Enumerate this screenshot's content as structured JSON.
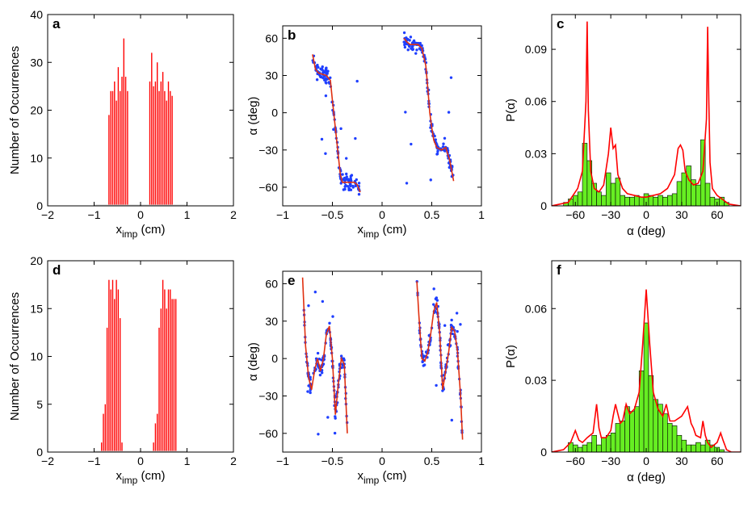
{
  "figure": {
    "x_imp_label": "x",
    "x_imp_sub": "imp",
    "x_imp_unit": " (cm)",
    "occ_label": "Number of Occurrences",
    "alpha_label": "α (deg)",
    "p_alpha_label": "P(α)"
  },
  "colors": {
    "bar_red": "#ff0000",
    "dot_blue": "#1f3fff",
    "fit_line": "#e03010",
    "hist_green": "#66ee22",
    "axis": "#000000"
  },
  "chart_data": [
    {
      "panel": "a",
      "type": "bar",
      "xlabel": "x_imp (cm)",
      "ylabel": "Number of Occurrences",
      "xlim": [
        -2,
        2
      ],
      "ylim": [
        0,
        40
      ],
      "xticks": [
        "−2",
        "−1",
        "0",
        "1",
        "2"
      ],
      "yticks": [
        "0",
        "10",
        "20",
        "30",
        "40"
      ],
      "x": [
        -0.68,
        -0.64,
        -0.6,
        -0.56,
        -0.52,
        -0.48,
        -0.44,
        -0.4,
        -0.36,
        -0.32,
        -0.28,
        -0.24,
        0.2,
        0.24,
        0.28,
        0.32,
        0.36,
        0.4,
        0.44,
        0.48,
        0.52,
        0.56,
        0.6,
        0.64,
        0.68
      ],
      "values": [
        19,
        24,
        24,
        26,
        22,
        29,
        24,
        27,
        35,
        27,
        24,
        0,
        26,
        32,
        25,
        26,
        30,
        24,
        26,
        28,
        24,
        22,
        26,
        24,
        23
      ]
    },
    {
      "panel": "b",
      "type": "scatter",
      "xlabel": "x_imp (cm)",
      "ylabel": "α (deg)",
      "xlim": [
        -1,
        1
      ],
      "ylim": [
        -75,
        70
      ],
      "xticks": [
        "−1",
        "−0.5",
        "0",
        "0.5",
        "1"
      ],
      "yticks": [
        "−60",
        "−30",
        "0",
        "30",
        "60"
      ],
      "fit_segments": [
        {
          "x": [
            -0.7,
            -0.67,
            -0.64,
            -0.6,
            -0.56,
            -0.52,
            -0.5,
            -0.48,
            -0.46,
            -0.44,
            -0.42,
            -0.4,
            -0.36,
            -0.32,
            -0.28,
            -0.25,
            -0.22
          ],
          "y": [
            47,
            35,
            32,
            31,
            30,
            26,
            10,
            -5,
            -20,
            -35,
            -50,
            -56,
            -56,
            -56,
            -56,
            -58,
            -64
          ]
        },
        {
          "x": [
            0.22,
            0.25,
            0.28,
            0.32,
            0.36,
            0.4,
            0.44,
            0.46,
            0.48,
            0.5,
            0.52,
            0.55,
            0.6,
            0.64,
            0.68,
            0.72
          ],
          "y": [
            60,
            57,
            55,
            55,
            55,
            52,
            38,
            20,
            0,
            -12,
            -22,
            -28,
            -30,
            -28,
            -38,
            -55
          ]
        }
      ]
    },
    {
      "panel": "c",
      "type": "bar",
      "xlabel": "α (deg)",
      "ylabel": "P(α)",
      "xlim": [
        -80,
        80
      ],
      "ylim": [
        0,
        0.11
      ],
      "xticks": [
        "−60",
        "−30",
        "0",
        "30",
        "60"
      ],
      "yticks": [
        "0",
        "0.03",
        "0.06",
        "0.09"
      ],
      "bin_edges_start": -70,
      "bin_width": 4,
      "values": [
        0.002,
        0.004,
        0.006,
        0.008,
        0.036,
        0.026,
        0.013,
        0.008,
        0.006,
        0.019,
        0.013,
        0.016,
        0.006,
        0.005,
        0.005,
        0.006,
        0.005,
        0.007,
        0.006,
        0.005,
        0.006,
        0.005,
        0.006,
        0.007,
        0.014,
        0.019,
        0.023,
        0.015,
        0.012,
        0.038,
        0.013,
        0.005,
        0.004,
        0.005,
        0.002
      ],
      "curve": {
        "x": [
          -80,
          -66,
          -62,
          -58,
          -54,
          -51,
          -50,
          -49,
          -47,
          -44,
          -40,
          -36,
          -32,
          -30,
          -28,
          -26,
          -24,
          -20,
          -16,
          -10,
          -4,
          0,
          6,
          12,
          18,
          24,
          27,
          29,
          31,
          33,
          36,
          40,
          44,
          48,
          51,
          52,
          53,
          54,
          56,
          60,
          66,
          70,
          80
        ],
        "y": [
          0,
          0.002,
          0.006,
          0.01,
          0.02,
          0.06,
          0.106,
          0.055,
          0.02,
          0.01,
          0.008,
          0.012,
          0.03,
          0.045,
          0.033,
          0.035,
          0.018,
          0.01,
          0.007,
          0.006,
          0.005,
          0.005,
          0.006,
          0.007,
          0.01,
          0.018,
          0.033,
          0.035,
          0.032,
          0.02,
          0.015,
          0.012,
          0.013,
          0.02,
          0.05,
          0.103,
          0.06,
          0.025,
          0.01,
          0.006,
          0.003,
          0.001,
          0
        ]
      }
    },
    {
      "panel": "d",
      "type": "bar",
      "xlabel": "x_imp (cm)",
      "ylabel": "Number of Occurrences",
      "xlim": [
        -2,
        2
      ],
      "ylim": [
        0,
        20
      ],
      "xticks": [
        "−2",
        "−1",
        "0",
        "1",
        "2"
      ],
      "yticks": [
        "0",
        "5",
        "10",
        "15",
        "20"
      ],
      "x": [
        -0.84,
        -0.8,
        -0.76,
        -0.72,
        -0.68,
        -0.64,
        -0.6,
        -0.56,
        -0.52,
        -0.48,
        -0.44,
        -0.4,
        0.28,
        0.32,
        0.36,
        0.4,
        0.44,
        0.48,
        0.52,
        0.56,
        0.6,
        0.64,
        0.68,
        0.72,
        0.76
      ],
      "values": [
        1,
        4,
        5,
        13,
        18,
        17,
        18,
        16,
        18,
        17,
        14,
        1,
        1,
        3,
        4,
        13,
        15,
        18,
        17,
        15,
        17,
        17,
        16,
        16,
        16
      ]
    },
    {
      "panel": "e",
      "type": "scatter",
      "xlabel": "x_imp (cm)",
      "ylabel": "α (deg)",
      "xlim": [
        -1,
        1
      ],
      "ylim": [
        -75,
        70
      ],
      "xticks": [
        "−1",
        "−0.5",
        "0",
        "0.5",
        "1"
      ],
      "yticks": [
        "−60",
        "−30",
        "0",
        "30",
        "60"
      ],
      "fit_segments": [
        {
          "x": [
            -0.8,
            -0.77,
            -0.74,
            -0.71,
            -0.68,
            -0.65,
            -0.62,
            -0.59,
            -0.56,
            -0.53,
            -0.5,
            -0.47,
            -0.44,
            -0.41,
            -0.38,
            -0.35
          ],
          "y": [
            65,
            10,
            -15,
            -25,
            -10,
            0,
            -10,
            0,
            20,
            26,
            0,
            -45,
            -20,
            0,
            -5,
            -60
          ]
        },
        {
          "x": [
            0.35,
            0.37,
            0.4,
            0.43,
            0.46,
            0.49,
            0.52,
            0.55,
            0.58,
            0.61,
            0.64,
            0.67,
            0.7,
            0.73,
            0.76,
            0.79,
            0.81
          ],
          "y": [
            62,
            35,
            0,
            -2,
            5,
            20,
            38,
            45,
            20,
            -25,
            -10,
            5,
            25,
            22,
            5,
            -30,
            -65
          ]
        }
      ]
    },
    {
      "panel": "f",
      "type": "bar",
      "xlabel": "α (deg)",
      "ylabel": "P(α)",
      "xlim": [
        -80,
        80
      ],
      "ylim": [
        0,
        0.08
      ],
      "xticks": [
        "−60",
        "−30",
        "0",
        "30",
        "60"
      ],
      "yticks": [
        "0",
        "0.03",
        "0.06"
      ],
      "bin_edges_start": -66,
      "bin_width": 4,
      "values": [
        0.004,
        0.003,
        0.002,
        0.003,
        0.004,
        0.007,
        0.003,
        0.006,
        0.007,
        0.008,
        0.012,
        0.013,
        0.019,
        0.017,
        0.019,
        0.034,
        0.054,
        0.032,
        0.022,
        0.02,
        0.016,
        0.012,
        0.011,
        0.007,
        0.005,
        0.003,
        0.003,
        0.004,
        0.003,
        0.005,
        0.003,
        0.002,
        0.001
      ],
      "curve": {
        "x": [
          -80,
          -70,
          -64,
          -60,
          -57,
          -54,
          -50,
          -45,
          -42,
          -40,
          -38,
          -34,
          -30,
          -28,
          -26,
          -22,
          -20,
          -17,
          -14,
          -10,
          -6,
          -3,
          0,
          3,
          6,
          10,
          14,
          17,
          20,
          24,
          30,
          35,
          38,
          40,
          42,
          46,
          48,
          50,
          52,
          55,
          60,
          63,
          65,
          68,
          72,
          80
        ],
        "y": [
          0,
          0.001,
          0.004,
          0.009,
          0.005,
          0.004,
          0.006,
          0.008,
          0.02,
          0.01,
          0.006,
          0.006,
          0.009,
          0.015,
          0.02,
          0.012,
          0.013,
          0.02,
          0.016,
          0.018,
          0.025,
          0.045,
          0.068,
          0.045,
          0.025,
          0.018,
          0.015,
          0.02,
          0.013,
          0.013,
          0.015,
          0.019,
          0.012,
          0.01,
          0.007,
          0.006,
          0.013,
          0.007,
          0.004,
          0.002,
          0.004,
          0.008,
          0.005,
          0.001,
          0,
          0
        ]
      }
    }
  ]
}
